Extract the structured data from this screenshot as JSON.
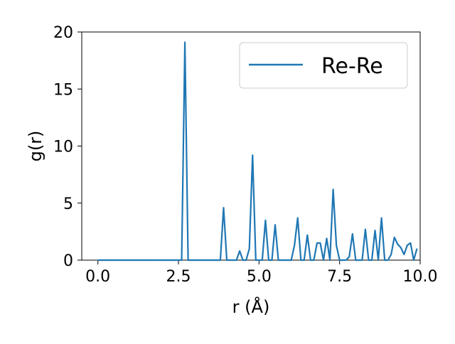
{
  "chart_data": {
    "type": "line",
    "xlabel": "r (Å)",
    "ylabel": "g(r)",
    "xlim": [
      -0.5,
      10.0
    ],
    "ylim": [
      0,
      20
    ],
    "xticks": [
      0.0,
      2.5,
      5.0,
      7.5,
      10.0
    ],
    "xtick_labels": [
      "0.0",
      "2.5",
      "5.0",
      "7.5",
      "10.0"
    ],
    "yticks": [
      0,
      5,
      10,
      15,
      20
    ],
    "ytick_labels": [
      "0",
      "5",
      "10",
      "15",
      "20"
    ],
    "grid": false,
    "legend_position": "top-right",
    "series": [
      {
        "name": "Re-Re",
        "color": "#1f77b4",
        "x": [
          0.0,
          0.1,
          0.2,
          0.3,
          0.4,
          0.5,
          0.6,
          0.7,
          0.8,
          0.9,
          1.0,
          1.1,
          1.2,
          1.3,
          1.4,
          1.5,
          1.6,
          1.7,
          1.8,
          1.9,
          2.0,
          2.1,
          2.2,
          2.3,
          2.4,
          2.5,
          2.6,
          2.7,
          2.8,
          2.9,
          3.0,
          3.1,
          3.2,
          3.3,
          3.4,
          3.5,
          3.6,
          3.7,
          3.8,
          3.9,
          4.0,
          4.1,
          4.2,
          4.3,
          4.4,
          4.5,
          4.6,
          4.7,
          4.8,
          4.9,
          5.0,
          5.1,
          5.2,
          5.3,
          5.4,
          5.5,
          5.6,
          5.7,
          5.8,
          5.9,
          6.0,
          6.1,
          6.2,
          6.3,
          6.4,
          6.5,
          6.6,
          6.7,
          6.8,
          6.9,
          7.0,
          7.1,
          7.2,
          7.3,
          7.4,
          7.5,
          7.6,
          7.7,
          7.8,
          7.9,
          8.0,
          8.1,
          8.2,
          8.3,
          8.4,
          8.5,
          8.6,
          8.7,
          8.8,
          8.9,
          9.0,
          9.1,
          9.2,
          9.3,
          9.4,
          9.5,
          9.6,
          9.7,
          9.8,
          9.9
        ],
        "y": [
          0,
          0,
          0,
          0,
          0,
          0,
          0,
          0,
          0,
          0,
          0,
          0,
          0,
          0,
          0,
          0,
          0,
          0,
          0,
          0,
          0,
          0,
          0,
          0,
          0,
          0,
          0,
          19.1,
          0,
          0,
          0,
          0,
          0,
          0,
          0,
          0,
          0,
          0,
          0,
          4.6,
          0,
          0,
          0,
          0,
          0.8,
          0,
          0,
          1.0,
          9.2,
          0,
          0,
          0,
          3.5,
          0,
          0,
          3.1,
          0,
          0,
          0,
          0,
          0,
          1.3,
          3.7,
          0,
          0,
          2.2,
          0,
          0,
          1.5,
          1.5,
          0,
          1.9,
          0,
          6.2,
          1.3,
          0,
          0,
          0,
          0.3,
          2.3,
          0,
          0,
          0,
          2.7,
          0,
          0,
          2.6,
          0,
          3.7,
          0,
          0,
          0.5,
          2.0,
          1.4,
          1.1,
          0.5,
          1.3,
          1.5,
          0,
          1.0
        ]
      }
    ]
  }
}
